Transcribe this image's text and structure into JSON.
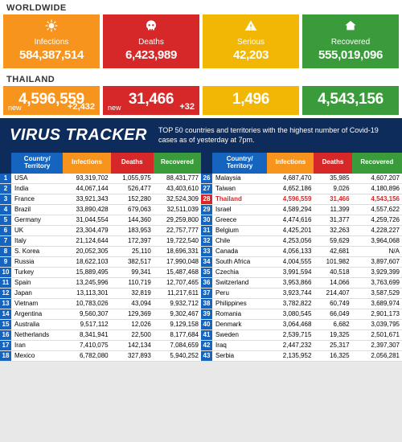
{
  "worldwide": {
    "label": "WORLDWIDE",
    "stats": [
      {
        "label": "Infections",
        "value": "584,387,514",
        "color": "orange",
        "icon": "virus"
      },
      {
        "label": "Deaths",
        "value": "6,423,989",
        "color": "red",
        "icon": "skull"
      },
      {
        "label": "Serious",
        "value": "42,203",
        "color": "yellow",
        "icon": "warn"
      },
      {
        "label": "Recovered",
        "value": "555,019,096",
        "color": "green",
        "icon": "home"
      }
    ]
  },
  "thailand": {
    "label": "THAILAND",
    "stats": [
      {
        "value": "4,596,559",
        "sub": "new",
        "delta": "+2,432",
        "color": "orange"
      },
      {
        "value": "31,466",
        "sub": "new",
        "delta": "+32",
        "color": "red"
      },
      {
        "value": "1,496",
        "color": "yellow"
      },
      {
        "value": "4,543,156",
        "color": "green"
      }
    ]
  },
  "tracker": {
    "title": "VIRUS TRACKER",
    "subtitle": "TOP 50 countries and territories with the highest number of Covid-19 cases as of yesterday at 7pm.",
    "headers": {
      "country": "Country/\nTerritory",
      "infections": "Infections",
      "deaths": "Deaths",
      "recovered": "Recovered"
    },
    "left": [
      {
        "rank": 1,
        "country": "USA",
        "inf": "93,319,702",
        "dth": "1,055,975",
        "rec": "88,431,777"
      },
      {
        "rank": 2,
        "country": "India",
        "inf": "44,067,144",
        "dth": "526,477",
        "rec": "43,403,610"
      },
      {
        "rank": 3,
        "country": "France",
        "inf": "33,921,343",
        "dth": "152,280",
        "rec": "32,524,309"
      },
      {
        "rank": 4,
        "country": "Brazil",
        "inf": "33,890,428",
        "dth": "679,063",
        "rec": "32,511,039"
      },
      {
        "rank": 5,
        "country": "Germany",
        "inf": "31,044,554",
        "dth": "144,360",
        "rec": "29,259,800"
      },
      {
        "rank": 6,
        "country": "UK",
        "inf": "23,304,479",
        "dth": "183,953",
        "rec": "22,757,777"
      },
      {
        "rank": 7,
        "country": "Italy",
        "inf": "21,124,644",
        "dth": "172,397",
        "rec": "19,722,540"
      },
      {
        "rank": 8,
        "country": "S. Korea",
        "inf": "20,052,305",
        "dth": "25,110",
        "rec": "18,696,331"
      },
      {
        "rank": 9,
        "country": "Russia",
        "inf": "18,622,103",
        "dth": "382,517",
        "rec": "17,990,048"
      },
      {
        "rank": 10,
        "country": "Turkey",
        "inf": "15,889,495",
        "dth": "99,341",
        "rec": "15,487,468"
      },
      {
        "rank": 11,
        "country": "Spain",
        "inf": "13,245,996",
        "dth": "110,719",
        "rec": "12,707,465"
      },
      {
        "rank": 12,
        "country": "Japan",
        "inf": "13,113,301",
        "dth": "32,819",
        "rec": "11,217,611"
      },
      {
        "rank": 13,
        "country": "Vietnam",
        "inf": "10,783,026",
        "dth": "43,094",
        "rec": "9,932,712"
      },
      {
        "rank": 14,
        "country": "Argentina",
        "inf": "9,560,307",
        "dth": "129,369",
        "rec": "9,302,467"
      },
      {
        "rank": 15,
        "country": "Australia",
        "inf": "9,517,112",
        "dth": "12,026",
        "rec": "9,129,158"
      },
      {
        "rank": 16,
        "country": "Netherlands",
        "inf": "8,341,941",
        "dth": "22,500",
        "rec": "8,177,684"
      },
      {
        "rank": 17,
        "country": "Iran",
        "inf": "7,410,075",
        "dth": "142,134",
        "rec": "7,084,659"
      },
      {
        "rank": 18,
        "country": "Mexico",
        "inf": "6,782,080",
        "dth": "327,893",
        "rec": "5,940,252"
      }
    ],
    "right": [
      {
        "rank": 26,
        "country": "Malaysia",
        "inf": "4,687,470",
        "dth": "35,985",
        "rec": "4,607,207"
      },
      {
        "rank": 27,
        "country": "Taiwan",
        "inf": "4,652,186",
        "dth": "9,026",
        "rec": "4,180,896"
      },
      {
        "rank": 28,
        "country": "Thailand",
        "inf": "4,596,559",
        "dth": "31,466",
        "rec": "4,543,156",
        "hl": true
      },
      {
        "rank": 29,
        "country": "Israel",
        "inf": "4,589,294",
        "dth": "11,399",
        "rec": "4,557,622"
      },
      {
        "rank": 30,
        "country": "Greece",
        "inf": "4,474,616",
        "dth": "31,377",
        "rec": "4,259,726"
      },
      {
        "rank": 31,
        "country": "Belgium",
        "inf": "4,425,201",
        "dth": "32,263",
        "rec": "4,228,227"
      },
      {
        "rank": 32,
        "country": "Chile",
        "inf": "4,253,056",
        "dth": "59,629",
        "rec": "3,964,068"
      },
      {
        "rank": 33,
        "country": "Canada",
        "inf": "4,056,133",
        "dth": "42,681",
        "rec": "N/A"
      },
      {
        "rank": 34,
        "country": "South Africa",
        "inf": "4,004,555",
        "dth": "101,982",
        "rec": "3,897,607"
      },
      {
        "rank": 35,
        "country": "Czechia",
        "inf": "3,991,594",
        "dth": "40,518",
        "rec": "3,929,399"
      },
      {
        "rank": 36,
        "country": "Switzerland",
        "inf": "3,953,866",
        "dth": "14,066",
        "rec": "3,763,699"
      },
      {
        "rank": 37,
        "country": "Peru",
        "inf": "3,923,744",
        "dth": "214,407",
        "rec": "3,587,529"
      },
      {
        "rank": 38,
        "country": "Philippines",
        "inf": "3,782,822",
        "dth": "60,749",
        "rec": "3,689,974"
      },
      {
        "rank": 39,
        "country": "Romania",
        "inf": "3,080,545",
        "dth": "66,049",
        "rec": "2,901,173"
      },
      {
        "rank": 40,
        "country": "Denmark",
        "inf": "3,064,468",
        "dth": "6,682",
        "rec": "3,039,795"
      },
      {
        "rank": 41,
        "country": "Sweden",
        "inf": "2,539,715",
        "dth": "19,325",
        "rec": "2,501,671"
      },
      {
        "rank": 42,
        "country": "Iraq",
        "inf": "2,447,232",
        "dth": "25,317",
        "rec": "2,397,307"
      },
      {
        "rank": 43,
        "country": "Serbia",
        "inf": "2,135,952",
        "dth": "16,325",
        "rec": "2,056,281"
      }
    ]
  }
}
